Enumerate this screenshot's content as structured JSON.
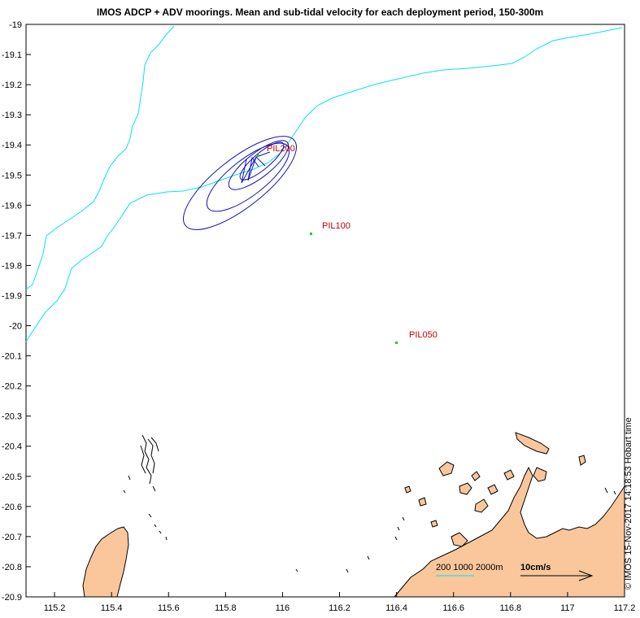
{
  "title": "IMOS ADCP + ADV moorings. Mean and sub-tidal velocity for each deployment period, 150-300m",
  "axes": {
    "x_ticks": [
      "115.2",
      "115.4",
      "115.6",
      "115.8",
      "116",
      "116.2",
      "116.4",
      "116.6",
      "116.8",
      "117",
      "117.2"
    ],
    "y_ticks": [
      "-19",
      "-19.1",
      "-19.2",
      "-19.3",
      "-19.4",
      "-19.5",
      "-19.6",
      "-19.7",
      "-19.8",
      "-19.9",
      "-20",
      "-20.1",
      "-20.2",
      "-20.3",
      "-20.4",
      "-20.5",
      "-20.6",
      "-20.7",
      "-20.8",
      "-20.9"
    ]
  },
  "moorings": [
    {
      "name": "PIL200",
      "lon": 115.92,
      "lat": -19.42
    },
    {
      "name": "PIL100",
      "lon": 116.11,
      "lat": -19.7
    },
    {
      "name": "PIL050",
      "lon": 116.41,
      "lat": -20.05
    }
  ],
  "legend": {
    "isobaths": "200 1000 2000m",
    "velocity_scale": "10cm/s"
  },
  "credit": "© IMOS 15-Nov-2017 14:18:53 Hobart time",
  "colors": {
    "isobath": "#00e5ee",
    "ellipse": "#1010c0",
    "land": "#f9c79b",
    "site_marker": "#22cc22",
    "site_label": "#cc0000"
  }
}
